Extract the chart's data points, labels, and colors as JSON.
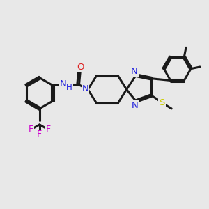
{
  "background_color": "#e8e8e8",
  "bond_color": "#1a1a1a",
  "n_color": "#2020dd",
  "o_color": "#dd2020",
  "s_color": "#cccc00",
  "f_color": "#cc00cc",
  "line_width": 2.2,
  "figsize": [
    3.0,
    3.0
  ],
  "dpi": 100,
  "xlim": [
    -0.5,
    10.5
  ],
  "ylim": [
    -2.0,
    8.5
  ]
}
